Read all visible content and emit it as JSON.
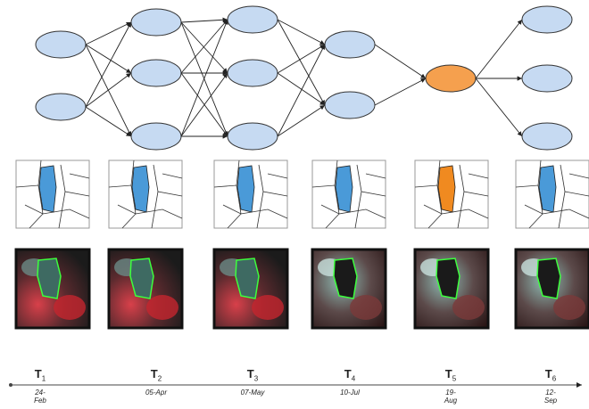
{
  "timeline": {
    "points": [
      {
        "letter": "T",
        "index": "1",
        "date": "24-Feb"
      },
      {
        "letter": "T",
        "index": "2",
        "date": "05-Apr"
      },
      {
        "letter": "T",
        "index": "3",
        "date": "07-May"
      },
      {
        "letter": "T",
        "index": "4",
        "date": "10-Jul"
      },
      {
        "letter": "T",
        "index": "5",
        "date": "19-Aug"
      },
      {
        "letter": "T",
        "index": "6",
        "date": "12-Sep"
      }
    ]
  }
}
